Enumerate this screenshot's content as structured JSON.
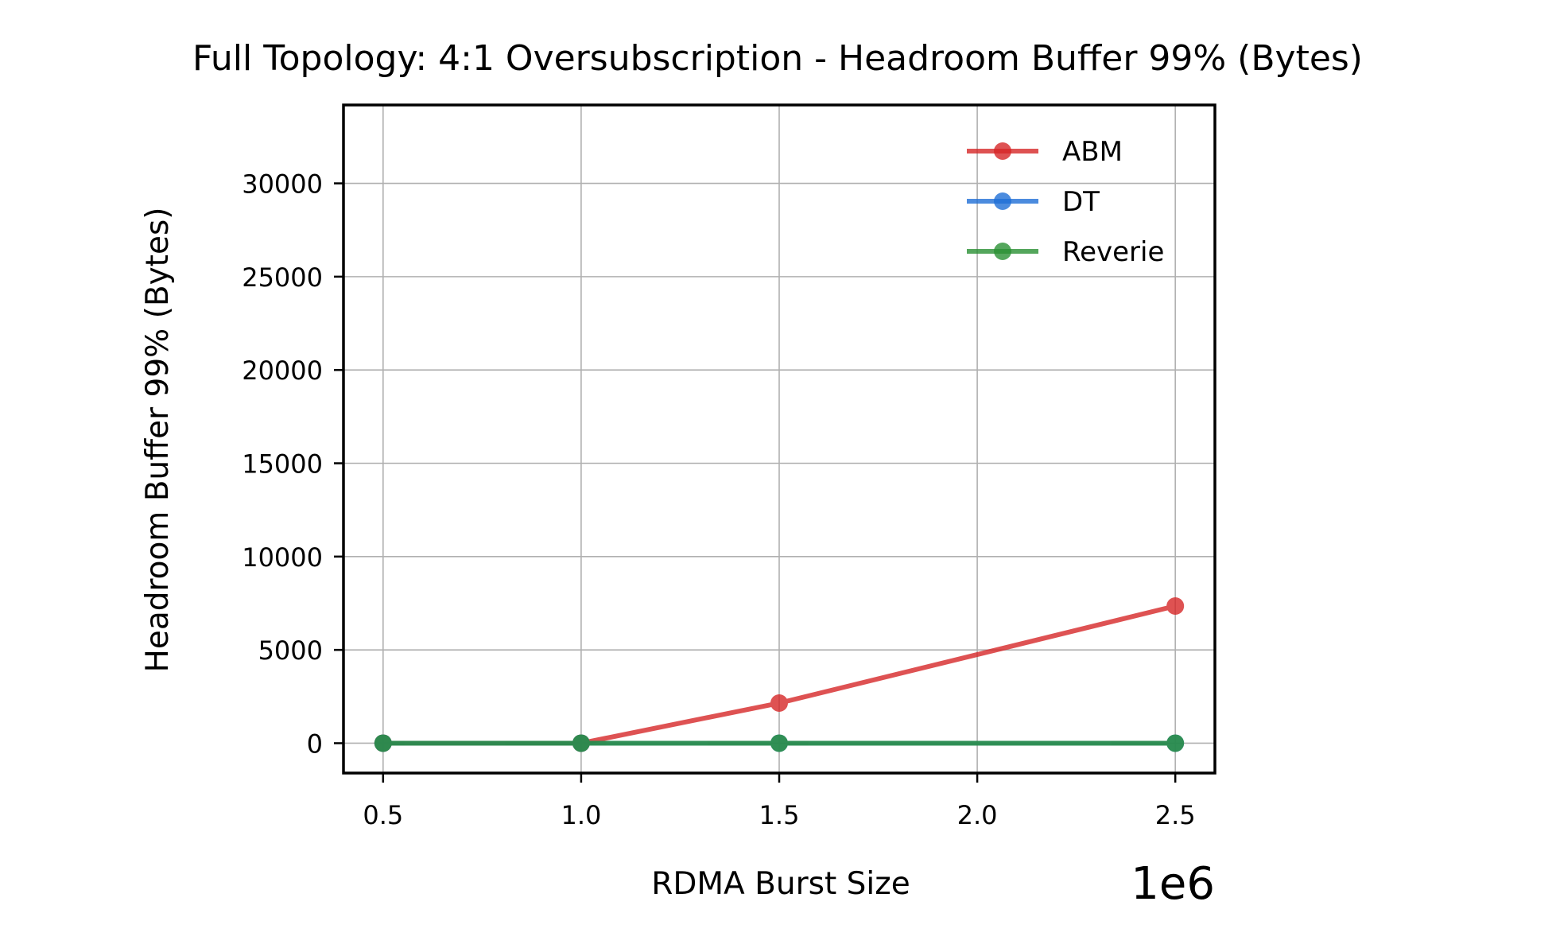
{
  "chart_data": {
    "type": "line",
    "title": "Full Topology: 4:1 Oversubscription - Headroom Buffer 99% (Bytes)",
    "xlabel": "RDMA Burst Size",
    "ylabel": "Headroom Buffer 99% (Bytes)",
    "x_offset_label": "1e6",
    "x": [
      500000,
      1000000,
      1500000,
      2500000
    ],
    "xlim": [
      400000,
      2600000
    ],
    "ylim": [
      -1600,
      34200
    ],
    "x_ticks": [
      500000,
      1000000,
      1500000,
      2000000,
      2500000
    ],
    "x_tick_labels": [
      "0.5",
      "1.0",
      "1.5",
      "2.0",
      "2.5"
    ],
    "y_ticks": [
      0,
      5000,
      10000,
      15000,
      20000,
      25000,
      30000
    ],
    "y_tick_labels": [
      "0",
      "5000",
      "10000",
      "15000",
      "20000",
      "25000",
      "30000"
    ],
    "grid": true,
    "legend_position": "top-right",
    "series": [
      {
        "name": "ABM",
        "color": "#d62728",
        "values": [
          0,
          0,
          2150,
          7350
        ]
      },
      {
        "name": "DT",
        "color": "#1f6fd6",
        "values": [
          0,
          0,
          0,
          0
        ]
      },
      {
        "name": "Reverie",
        "color": "#2a9134",
        "values": [
          0,
          0,
          0,
          0
        ]
      }
    ]
  }
}
